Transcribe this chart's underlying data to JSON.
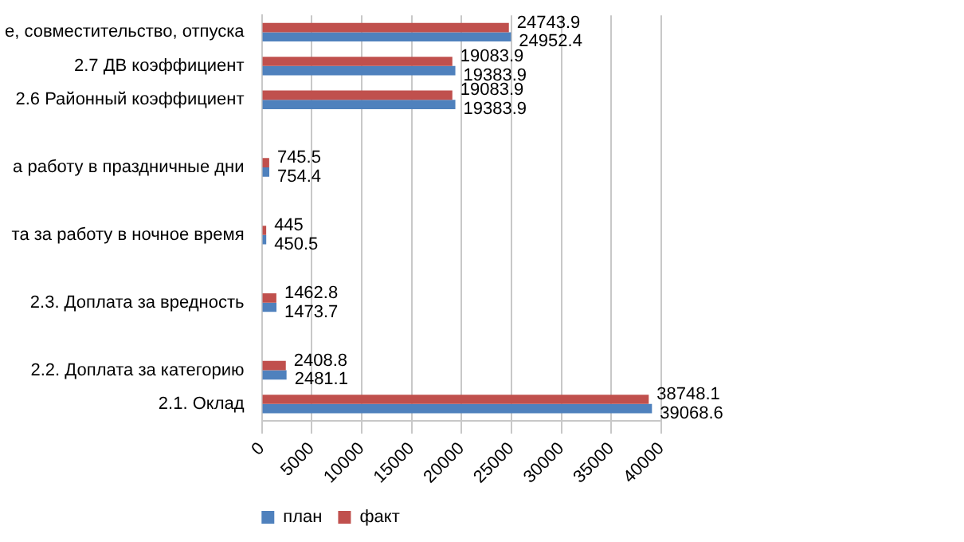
{
  "chart_data": {
    "type": "bar",
    "orientation": "horizontal",
    "categories": [
      "е, совместительство, отпуска",
      "2.7 ДВ коэффициент",
      "2.6 Районный коэффициент",
      null,
      "а работу в праздничные дни",
      null,
      "та за работу в ночное время",
      null,
      "2.3. Доплата за вредность",
      null,
      "2.2. Доплата за категорию",
      "2.1. Оклад"
    ],
    "series": [
      {
        "name": "факт",
        "color": "#c0504d",
        "values": [
          24743.9,
          19083.9,
          19083.9,
          null,
          745.5,
          null,
          445,
          null,
          1462.8,
          null,
          2408.8,
          38748.1
        ]
      },
      {
        "name": "план",
        "color": "#4f81bd",
        "values": [
          24952.4,
          19383.9,
          19383.9,
          null,
          754.4,
          null,
          450.5,
          null,
          1473.7,
          null,
          2481.1,
          39068.6
        ]
      }
    ],
    "xlim": [
      0,
      40000
    ],
    "xticks": [
      0,
      5000,
      10000,
      15000,
      20000,
      25000,
      30000,
      35000,
      40000
    ],
    "grid": "x",
    "legend": "bottom",
    "data_labels": true
  }
}
